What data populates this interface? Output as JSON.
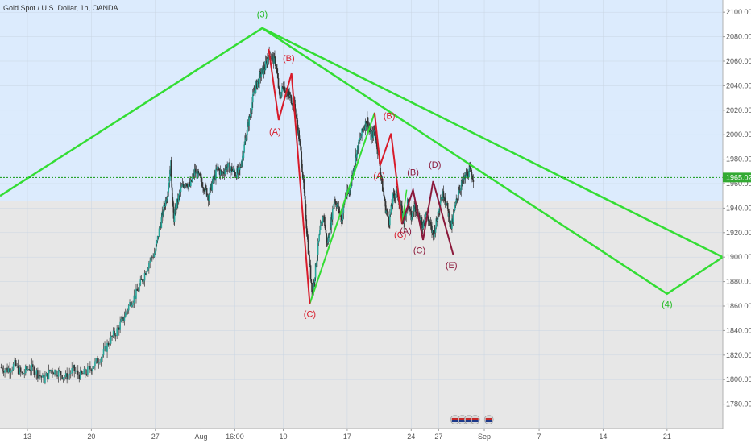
{
  "header": {
    "title": "Gold Spot / U.S. Dollar, 1h, OANDA"
  },
  "chart_data": {
    "type": "line",
    "title": "Gold Spot / U.S. Dollar, 1h, OANDA",
    "ylim": [
      1760,
      2110
    ],
    "y_ticks": [
      1780,
      1800,
      1820,
      1840,
      1860,
      1880,
      1900,
      1920,
      1940,
      1960,
      1980,
      2000,
      2020,
      2040,
      2060,
      2080,
      2100
    ],
    "y_tick_labels": [
      "1780.000",
      "1800.000",
      "1820.000",
      "1840.000",
      "1860.000",
      "1880.000",
      "1900.000",
      "1920.000",
      "1940.000",
      "1960.000",
      "1980.000",
      "2000.000",
      "2020.000",
      "2040.000",
      "2060.000",
      "2080.000",
      "2100.000"
    ],
    "x_ticks": [
      {
        "label": "13",
        "day": 13
      },
      {
        "label": "20",
        "day": 20
      },
      {
        "label": "27",
        "day": 27
      },
      {
        "label": "Aug",
        "day": 32
      },
      {
        "label": "16:00",
        "day": 35.7
      },
      {
        "label": "10",
        "day": 41
      },
      {
        "label": "17",
        "day": 48
      },
      {
        "label": "24",
        "day": 55
      },
      {
        "label": "27",
        "day": 58
      },
      {
        "label": "Sep",
        "day": 63
      },
      {
        "label": "7",
        "day": 69
      },
      {
        "label": "14",
        "day": 76
      },
      {
        "label": "21",
        "day": 83
      }
    ],
    "xlim_days": [
      10,
      89.1
    ],
    "current_price": {
      "value": 1965.026,
      "label": "1965.026"
    },
    "zone_split": 1946,
    "price_path": [
      [
        10.0,
        1810
      ],
      [
        10.8,
        1808
      ],
      [
        11.6,
        1812
      ],
      [
        12.4,
        1804
      ],
      [
        13.2,
        1810
      ],
      [
        14.0,
        1806
      ],
      [
        14.8,
        1800
      ],
      [
        15.6,
        1808
      ],
      [
        16.4,
        1806
      ],
      [
        17.2,
        1802
      ],
      [
        18.0,
        1808
      ],
      [
        18.8,
        1803
      ],
      [
        19.6,
        1807
      ],
      [
        20.4,
        1813
      ],
      [
        21.2,
        1820
      ],
      [
        22.0,
        1832
      ],
      [
        22.8,
        1840
      ],
      [
        23.5,
        1850
      ],
      [
        24.2,
        1862
      ],
      [
        24.9,
        1870
      ],
      [
        25.6,
        1882
      ],
      [
        26.3,
        1896
      ],
      [
        27.0,
        1905
      ],
      [
        27.5,
        1925
      ],
      [
        28.0,
        1942
      ],
      [
        28.4,
        1955
      ],
      [
        28.7,
        1975
      ],
      [
        29.0,
        1930
      ],
      [
        29.3,
        1942
      ],
      [
        29.8,
        1955
      ],
      [
        30.3,
        1962
      ],
      [
        30.8,
        1958
      ],
      [
        31.3,
        1970
      ],
      [
        31.8,
        1965
      ],
      [
        32.3,
        1958
      ],
      [
        32.8,
        1950
      ],
      [
        33.3,
        1962
      ],
      [
        33.8,
        1972
      ],
      [
        34.3,
        1968
      ],
      [
        34.8,
        1974
      ],
      [
        35.3,
        1972
      ],
      [
        35.8,
        1968
      ],
      [
        36.2,
        1970
      ],
      [
        36.6,
        1985
      ],
      [
        37.0,
        2002
      ],
      [
        37.4,
        2018
      ],
      [
        37.8,
        2035
      ],
      [
        38.2,
        2043
      ],
      [
        38.6,
        2050
      ],
      [
        39.0,
        2055
      ],
      [
        39.4,
        2065
      ],
      [
        39.8,
        2063
      ],
      [
        40.2,
        2058
      ],
      [
        40.6,
        2030
      ],
      [
        41.0,
        2040
      ],
      [
        41.4,
        2035
      ],
      [
        41.8,
        2030
      ],
      [
        42.2,
        2025
      ],
      [
        42.6,
        2005
      ],
      [
        43.0,
        1980
      ],
      [
        43.4,
        1940
      ],
      [
        43.8,
        1900
      ],
      [
        44.2,
        1870
      ],
      [
        44.6,
        1895
      ],
      [
        45.0,
        1920
      ],
      [
        45.4,
        1935
      ],
      [
        45.8,
        1910
      ],
      [
        46.2,
        1928
      ],
      [
        46.6,
        1948
      ],
      [
        47.0,
        1940
      ],
      [
        47.4,
        1930
      ],
      [
        47.8,
        1950
      ],
      [
        48.2,
        1952
      ],
      [
        48.6,
        1968
      ],
      [
        49.0,
        1985
      ],
      [
        49.4,
        1996
      ],
      [
        49.8,
        2006
      ],
      [
        50.2,
        2012
      ],
      [
        50.6,
        1998
      ],
      [
        51.0,
        2003
      ],
      [
        51.4,
        1985
      ],
      [
        51.8,
        1960
      ],
      [
        52.2,
        1940
      ],
      [
        52.6,
        1930
      ],
      [
        53.0,
        1948
      ],
      [
        53.4,
        1955
      ],
      [
        53.8,
        1942
      ],
      [
        54.2,
        1930
      ],
      [
        54.6,
        1945
      ],
      [
        55.0,
        1932
      ],
      [
        55.4,
        1942
      ],
      [
        55.8,
        1935
      ],
      [
        56.2,
        1925
      ],
      [
        56.6,
        1937
      ],
      [
        57.0,
        1928
      ],
      [
        57.4,
        1918
      ],
      [
        57.8,
        1930
      ],
      [
        58.2,
        1948
      ],
      [
        58.6,
        1952
      ],
      [
        59.0,
        1938
      ],
      [
        59.4,
        1925
      ],
      [
        59.8,
        1940
      ],
      [
        60.2,
        1955
      ],
      [
        60.6,
        1960
      ],
      [
        61.0,
        1967
      ],
      [
        61.4,
        1970
      ],
      [
        61.8,
        1965
      ]
    ],
    "series": [
      {
        "color": "#33dd33",
        "points": [
          [
            10,
            1950
          ],
          [
            38.7,
            2087
          ],
          [
            89.1,
            1900
          ]
        ],
        "width": 2.5
      },
      {
        "color": "#33dd33",
        "points": [
          [
            38.7,
            2087
          ],
          [
            83,
            1870
          ],
          [
            89.1,
            1900
          ]
        ],
        "width": 2.5
      },
      {
        "color": "#33dd33",
        "points": [
          [
            43.9,
            1862
          ],
          [
            51.0,
            2018
          ]
        ],
        "width": 2
      },
      {
        "color": "#d81b2a",
        "points": [
          [
            39.4,
            2070
          ],
          [
            40.5,
            2012
          ],
          [
            41.9,
            2050
          ],
          [
            43.9,
            1862
          ]
        ],
        "width": 2
      },
      {
        "color": "#d81b2a",
        "points": [
          [
            51.0,
            2018
          ],
          [
            51.6,
            1975
          ],
          [
            52.8,
            2001
          ],
          [
            54.0,
            1927
          ]
        ],
        "width": 2
      },
      {
        "color": "#33dd33",
        "points": [
          [
            54.0,
            1927
          ],
          [
            54.5,
            1955
          ]
        ],
        "width": 1.5
      },
      {
        "color": "#8b1a3c",
        "points": [
          [
            54.0,
            1927
          ],
          [
            55.2,
            1955
          ],
          [
            56.3,
            1914
          ],
          [
            57.4,
            1962
          ],
          [
            59.6,
            1902
          ]
        ],
        "width": 2
      }
    ],
    "annotations": [
      {
        "text": "(3)",
        "day": 38.7,
        "price": 2096,
        "color": "#22bb22"
      },
      {
        "text": "(4)",
        "day": 83.0,
        "price": 1859,
        "color": "#22bb22"
      },
      {
        "text": "(A)",
        "day": 40.1,
        "price": 2000,
        "color": "#d81b2a"
      },
      {
        "text": "(B)",
        "day": 41.6,
        "price": 2060,
        "color": "#d81b2a"
      },
      {
        "text": "(C)",
        "day": 43.9,
        "price": 1851,
        "color": "#d81b2a"
      },
      {
        "text": "(A)",
        "day": 51.5,
        "price": 1964,
        "color": "#d81b2a"
      },
      {
        "text": "(B)",
        "day": 52.6,
        "price": 2013,
        "color": "#d81b2a"
      },
      {
        "text": "(C)",
        "day": 53.8,
        "price": 1916,
        "color": "#d81b2a"
      },
      {
        "text": "(A)",
        "day": 54.4,
        "price": 1919,
        "color": "#8b1a3c"
      },
      {
        "text": "(B)",
        "day": 55.2,
        "price": 1967,
        "color": "#8b1a3c"
      },
      {
        "text": "(C)",
        "day": 55.9,
        "price": 1903,
        "color": "#8b1a3c"
      },
      {
        "text": "(D)",
        "day": 57.6,
        "price": 1973,
        "color": "#8b1a3c"
      },
      {
        "text": "(E)",
        "day": 59.4,
        "price": 1891,
        "color": "#8b1a3c"
      }
    ]
  }
}
